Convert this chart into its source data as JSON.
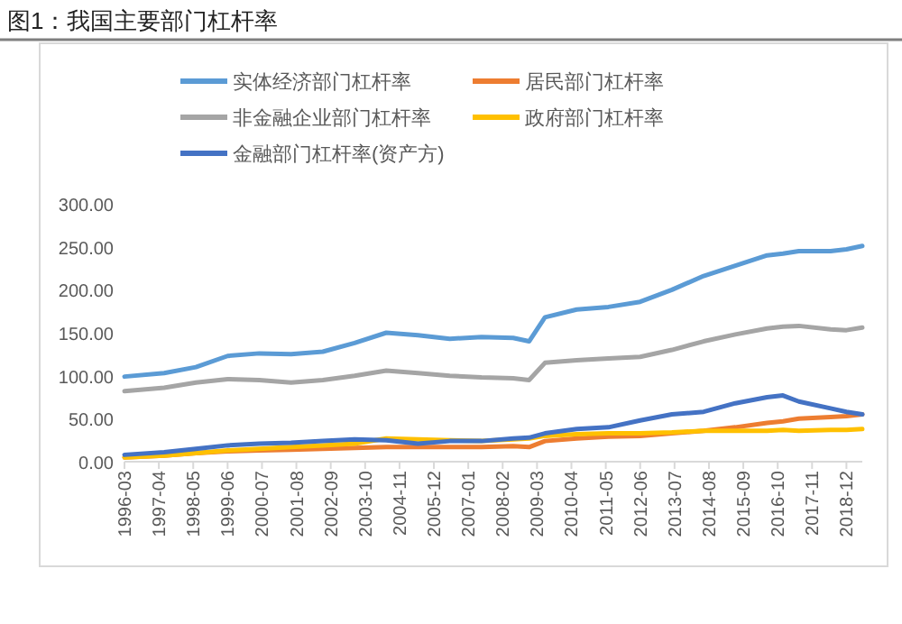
{
  "chart_data": {
    "type": "line",
    "title": "图1：我国主要部门杠杆率",
    "x": [
      "1996-03",
      "1997-06",
      "1998-06",
      "1999-06",
      "2000-06",
      "2001-06",
      "2002-06",
      "2003-06",
      "2004-06",
      "2005-06",
      "2006-06",
      "2007-06",
      "2008-06",
      "2008-12",
      "2009-06",
      "2010-06",
      "2011-06",
      "2012-06",
      "2013-06",
      "2014-06",
      "2015-06",
      "2016-06",
      "2016-12",
      "2017-06",
      "2018-06",
      "2018-12",
      "2019-06"
    ],
    "series": [
      {
        "name": "实体经济部门杠杆率",
        "color": "#5b9bd5",
        "values": [
          99,
          103,
          110,
          123,
          126,
          125,
          128,
          138,
          150,
          147,
          143,
          145,
          144,
          140,
          168,
          177,
          180,
          186,
          200,
          216,
          228,
          240,
          242,
          245,
          245,
          247,
          251
        ]
      },
      {
        "name": "居民部门杠杆率",
        "color": "#ed7d31",
        "values": [
          5,
          7,
          10,
          12,
          13,
          14,
          15,
          16,
          17,
          17,
          17,
          17,
          18,
          17,
          24,
          27,
          29,
          30,
          33,
          36,
          40,
          45,
          47,
          50,
          52,
          53,
          55
        ]
      },
      {
        "name": "非金融企业部门杠杆率",
        "color": "#a5a5a5",
        "values": [
          82,
          86,
          92,
          96,
          95,
          92,
          95,
          100,
          106,
          103,
          100,
          98,
          97,
          95,
          115,
          118,
          120,
          122,
          130,
          140,
          148,
          155,
          157,
          158,
          154,
          153,
          156
        ]
      },
      {
        "name": "政府部门杠杆率",
        "color": "#ffc000",
        "values": [
          5,
          7,
          10,
          13,
          15,
          17,
          19,
          21,
          27,
          26,
          25,
          24,
          26,
          27,
          30,
          32,
          33,
          33,
          34,
          36,
          36,
          36,
          37,
          36,
          37,
          37,
          38
        ]
      },
      {
        "name": "金融部门杠杆率(资产方)",
        "color": "#4472c4",
        "values": [
          8,
          11,
          15,
          19,
          21,
          22,
          24,
          26,
          25,
          21,
          24,
          24,
          27,
          28,
          33,
          38,
          40,
          48,
          55,
          58,
          68,
          75,
          77,
          70,
          62,
          58,
          55
        ]
      }
    ],
    "xlim": [
      "1996-03",
      "2019-06"
    ],
    "xticks": [
      {
        "value": "1996-03",
        "label": "1996-03"
      },
      {
        "value": "1997-04",
        "label": "1997-04"
      },
      {
        "value": "1998-05",
        "label": "1998-05"
      },
      {
        "value": "1999-06",
        "label": "1999-06"
      },
      {
        "value": "2000-07",
        "label": "2000-07"
      },
      {
        "value": "2001-08",
        "label": "2001-08"
      },
      {
        "value": "2002-09",
        "label": "2002-09"
      },
      {
        "value": "2003-10",
        "label": "2003-10"
      },
      {
        "value": "2004-11",
        "label": "2004-11"
      },
      {
        "value": "2005-12",
        "label": "2005-12"
      },
      {
        "value": "2007-01",
        "label": "2007-01"
      },
      {
        "value": "2008-02",
        "label": "2008-02"
      },
      {
        "value": "2009-03",
        "label": "2009-03"
      },
      {
        "value": "2010-04",
        "label": "2010-04"
      },
      {
        "value": "2011-05",
        "label": "2011-05"
      },
      {
        "value": "2012-06",
        "label": "2012-06"
      },
      {
        "value": "2013-07",
        "label": "2013-07"
      },
      {
        "value": "2014-08",
        "label": "2014-08"
      },
      {
        "value": "2015-09",
        "label": "2015-09"
      },
      {
        "value": "2016-10",
        "label": "2016-10"
      },
      {
        "value": "2017-11",
        "label": "2017-11"
      },
      {
        "value": "2018-12",
        "label": "2018-12"
      }
    ],
    "ylim": [
      0,
      300
    ],
    "yticks": [
      {
        "value": 0,
        "label": "0.00"
      },
      {
        "value": 50,
        "label": "50.00"
      },
      {
        "value": 100,
        "label": "100.00"
      },
      {
        "value": 150,
        "label": "150.00"
      },
      {
        "value": 200,
        "label": "200.00"
      },
      {
        "value": 250,
        "label": "250.00"
      },
      {
        "value": 300,
        "label": "300.00"
      }
    ],
    "legend": "top",
    "grid": false,
    "marker": "none",
    "line_style": "solid"
  }
}
